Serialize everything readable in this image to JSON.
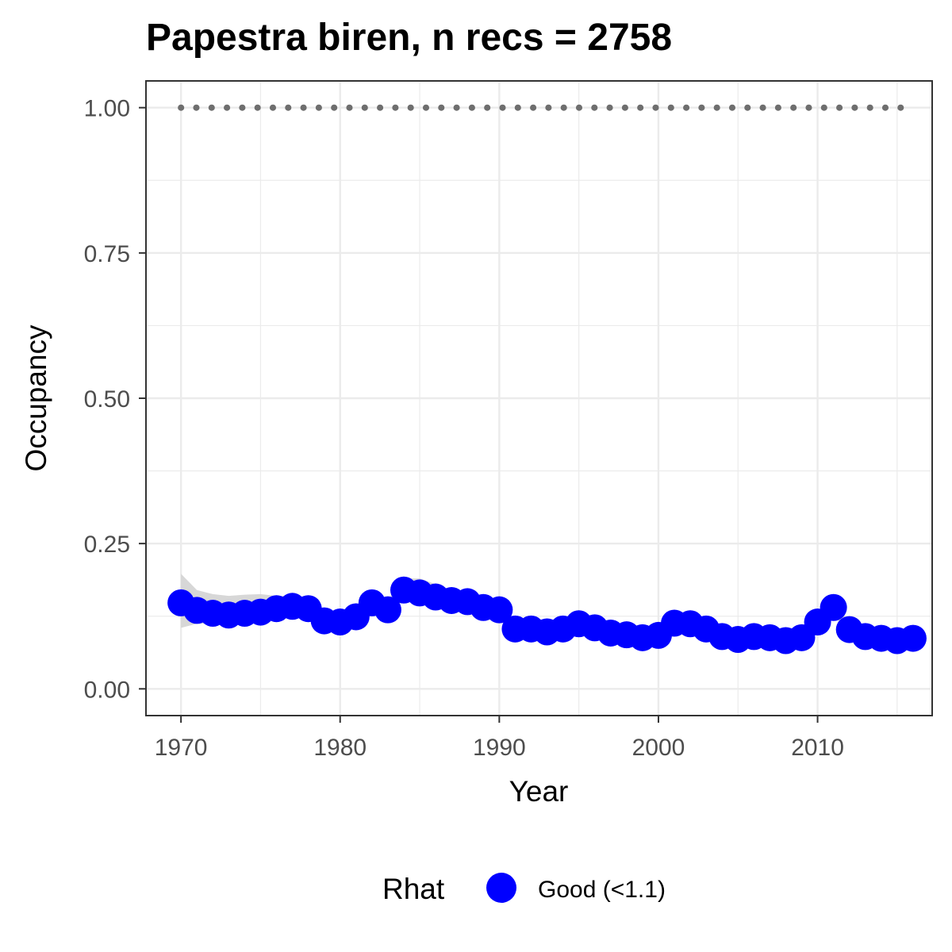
{
  "chart_data": {
    "type": "line",
    "title": "Papestra biren, n recs = 2758",
    "xlabel": "Year",
    "ylabel": "Occupancy",
    "xlim": [
      1967.8,
      2017.2
    ],
    "ylim": [
      -0.046,
      1.046
    ],
    "x_ticks": [
      1970,
      1980,
      1990,
      2000,
      2010
    ],
    "x_tick_labels": [
      "1970",
      "1980",
      "1990",
      "2000",
      "2010"
    ],
    "y_ticks": [
      0,
      0.25,
      0.5,
      0.75,
      1.0
    ],
    "y_tick_labels": [
      "0.00",
      "0.25",
      "0.50",
      "0.75",
      "1.00"
    ],
    "grid": true,
    "legend": {
      "position": "bottom",
      "title": "Rhat",
      "entries": [
        {
          "label": "Good (<1.1)",
          "color": "#0000ff"
        }
      ]
    },
    "colors": {
      "points": "#0000ff",
      "ribbon": "#d3d3d3",
      "reference": "#6e6e6e",
      "grid": "#ebebeb",
      "panel_border": "#333333"
    },
    "reference_line": {
      "y": 1.0,
      "style": "dotted"
    },
    "x": [
      1970,
      1971,
      1972,
      1973,
      1974,
      1975,
      1976,
      1977,
      1978,
      1979,
      1980,
      1981,
      1982,
      1983,
      1984,
      1985,
      1986,
      1987,
      1988,
      1989,
      1990,
      1991,
      1992,
      1993,
      1994,
      1995,
      1996,
      1997,
      1998,
      1999,
      2000,
      2001,
      2002,
      2003,
      2004,
      2005,
      2006,
      2007,
      2008,
      2009,
      2010,
      2011,
      2012,
      2013,
      2014,
      2015,
      2016
    ],
    "series": [
      {
        "name": "Good (<1.1)",
        "values": [
          0.148,
          0.135,
          0.13,
          0.127,
          0.13,
          0.132,
          0.138,
          0.142,
          0.138,
          0.117,
          0.115,
          0.124,
          0.148,
          0.136,
          0.17,
          0.165,
          0.158,
          0.152,
          0.15,
          0.14,
          0.136,
          0.103,
          0.103,
          0.098,
          0.103,
          0.112,
          0.105,
          0.096,
          0.093,
          0.088,
          0.092,
          0.113,
          0.112,
          0.103,
          0.09,
          0.085,
          0.09,
          0.088,
          0.083,
          0.088,
          0.115,
          0.14,
          0.102,
          0.09,
          0.087,
          0.083,
          0.087
        ],
        "lower": [
          0.105,
          0.112,
          0.112,
          0.112,
          0.114,
          0.116,
          0.122,
          0.126,
          0.122,
          0.104,
          0.102,
          0.11,
          0.134,
          0.122,
          0.155,
          0.15,
          0.144,
          0.138,
          0.136,
          0.126,
          0.122,
          0.092,
          0.092,
          0.088,
          0.092,
          0.101,
          0.094,
          0.086,
          0.083,
          0.078,
          0.082,
          0.102,
          0.101,
          0.092,
          0.08,
          0.075,
          0.08,
          0.078,
          0.073,
          0.078,
          0.104,
          0.128,
          0.092,
          0.08,
          0.077,
          0.073,
          0.077
        ],
        "upper": [
          0.198,
          0.17,
          0.163,
          0.16,
          0.162,
          0.163,
          0.16,
          0.16,
          0.155,
          0.132,
          0.13,
          0.14,
          0.163,
          0.152,
          0.19,
          0.19,
          0.18,
          0.168,
          0.165,
          0.155,
          0.151,
          0.115,
          0.115,
          0.11,
          0.115,
          0.124,
          0.117,
          0.108,
          0.105,
          0.099,
          0.103,
          0.125,
          0.124,
          0.115,
          0.101,
          0.096,
          0.101,
          0.099,
          0.094,
          0.099,
          0.127,
          0.153,
          0.113,
          0.101,
          0.098,
          0.094,
          0.098
        ]
      }
    ]
  }
}
